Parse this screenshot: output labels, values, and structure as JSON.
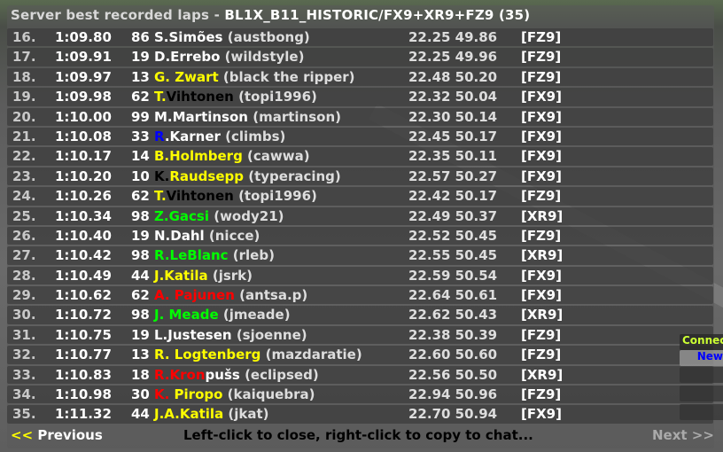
{
  "title": {
    "prefix": "Server best recorded laps - ",
    "track": "BL1X_B11_HISTORIC/FX9+XR9+FZ9 (35)"
  },
  "rows": [
    {
      "pos": "16.",
      "time": "1:09.80",
      "num": "86",
      "name": [
        {
          "t": "S.Simões",
          "c": "#ffffff"
        }
      ],
      "user": "(austbong)",
      "splits": "22.25 49.86",
      "car": "[FZ9]"
    },
    {
      "pos": "17.",
      "time": "1:09.91",
      "num": "19",
      "name": [
        {
          "t": "D.Errebo",
          "c": "#ffffff"
        }
      ],
      "user": "(wildstyle)",
      "splits": "22.25 49.96",
      "car": "[FZ9]"
    },
    {
      "pos": "18.",
      "time": "1:09.97",
      "num": "13",
      "name": [
        {
          "t": "G. Zwart",
          "c": "#ffff00"
        }
      ],
      "user": "(black the ripper)",
      "splits": "22.48 50.20",
      "car": "[FZ9]"
    },
    {
      "pos": "19.",
      "time": "1:09.98",
      "num": "62",
      "name": [
        {
          "t": "T.",
          "c": "#ffff00"
        },
        {
          "t": "Vihtonen",
          "c": "#000000"
        }
      ],
      "user": "(topi1996)",
      "splits": "22.32 50.04",
      "car": "[FX9]"
    },
    {
      "pos": "20.",
      "time": "1:10.00",
      "num": "99",
      "name": [
        {
          "t": "M.Martinson",
          "c": "#ffffff"
        }
      ],
      "user": "(martinson)",
      "splits": "22.30 50.14",
      "car": "[FX9]"
    },
    {
      "pos": "21.",
      "time": "1:10.08",
      "num": "33",
      "name": [
        {
          "t": "R",
          "c": "#0000ff"
        },
        {
          "t": ".Karner",
          "c": "#ffffff"
        }
      ],
      "user": "(climbs)",
      "splits": "22.45 50.17",
      "car": "[FX9]"
    },
    {
      "pos": "22.",
      "time": "1:10.17",
      "num": "14",
      "name": [
        {
          "t": "B.Holmberg",
          "c": "#ffff00"
        }
      ],
      "user": "(cawwa)",
      "splits": "22.35 50.11",
      "car": "[FX9]"
    },
    {
      "pos": "23.",
      "time": "1:10.20",
      "num": "10",
      "name": [
        {
          "t": "K.",
          "c": "#000000"
        },
        {
          "t": "Raudsepp",
          "c": "#ffff00"
        }
      ],
      "user": "(typeracing)",
      "splits": "22.57 50.27",
      "car": "[FX9]"
    },
    {
      "pos": "24.",
      "time": "1:10.26",
      "num": "62",
      "name": [
        {
          "t": "T.",
          "c": "#ffff00"
        },
        {
          "t": "Vihtonen",
          "c": "#000000"
        }
      ],
      "user": "(topi1996)",
      "splits": "22.42 50.17",
      "car": "[FZ9]"
    },
    {
      "pos": "25.",
      "time": "1:10.34",
      "num": "98",
      "name": [
        {
          "t": "Z.Gacsi",
          "c": "#00ff00"
        }
      ],
      "user": "(wody21)",
      "splits": "22.49 50.37",
      "car": "[XR9]"
    },
    {
      "pos": "26.",
      "time": "1:10.40",
      "num": "19",
      "name": [
        {
          "t": "N.Dahl",
          "c": "#ffffff"
        }
      ],
      "user": "(nicce)",
      "splits": "22.52 50.45",
      "car": "[FZ9]"
    },
    {
      "pos": "27.",
      "time": "1:10.42",
      "num": "98",
      "name": [
        {
          "t": "R.LeBlanc",
          "c": "#00ff00"
        }
      ],
      "user": "(rleb)",
      "splits": "22.55 50.45",
      "car": "[XR9]"
    },
    {
      "pos": "28.",
      "time": "1:10.49",
      "num": "44",
      "name": [
        {
          "t": "J.Katila",
          "c": "#ffff00"
        }
      ],
      "user": "(jsrk)",
      "splits": "22.59 50.54",
      "car": "[FX9]"
    },
    {
      "pos": "29.",
      "time": "1:10.62",
      "num": "62",
      "name": [
        {
          "t": "A. Pajunen",
          "c": "#ff0000"
        }
      ],
      "user": "(antsa.p)",
      "splits": "22.64 50.61",
      "car": "[FX9]"
    },
    {
      "pos": "30.",
      "time": "1:10.72",
      "num": "98",
      "name": [
        {
          "t": "J. Meade",
          "c": "#00ff00"
        }
      ],
      "user": "(jmeade)",
      "splits": "22.62 50.43",
      "car": "[XR9]"
    },
    {
      "pos": "31.",
      "time": "1:10.75",
      "num": "19",
      "name": [
        {
          "t": "L.Justesen",
          "c": "#ffffff"
        }
      ],
      "user": "(sjoenne)",
      "splits": "22.38 50.39",
      "car": "[FZ9]"
    },
    {
      "pos": "32.",
      "time": "1:10.77",
      "num": "13",
      "name": [
        {
          "t": "R. Logtenberg",
          "c": "#ffff00"
        }
      ],
      "user": "(mazdaratie)",
      "splits": "22.60 50.60",
      "car": "[FZ9]"
    },
    {
      "pos": "33.",
      "time": "1:10.83",
      "num": "18",
      "name": [
        {
          "t": "R.Kron",
          "c": "#ff0000"
        },
        {
          "t": "pušs",
          "c": "#ffffff"
        }
      ],
      "user": "(eclipsed)",
      "splits": "22.56 50.50",
      "car": "[XR9]"
    },
    {
      "pos": "34.",
      "time": "1:10.98",
      "num": "30",
      "name": [
        {
          "t": "K. ",
          "c": "#ff0000"
        },
        {
          "t": "Piropo",
          "c": "#ffff00"
        }
      ],
      "user": "(kaiquebra)",
      "splits": "22.94 50.96",
      "car": "[FZ9]"
    },
    {
      "pos": "35.",
      "time": "1:11.32",
      "num": "44",
      "name": [
        {
          "t": "J.A.Katila",
          "c": "#ffff00"
        }
      ],
      "user": "(jkat)",
      "splits": "22.70 50.94",
      "car": "[FX9]"
    }
  ],
  "footer": {
    "prev_arrows": "<<",
    "prev_label": "Previous",
    "hint": "Left-click to close, right-click to copy to chat...",
    "next_label": "Next >>"
  },
  "side": {
    "connect": "Connec",
    "new": "New"
  },
  "colors": {
    "yellow": "#ffff00",
    "green": "#00ff00",
    "red": "#ff0000",
    "blue": "#0000ff"
  }
}
